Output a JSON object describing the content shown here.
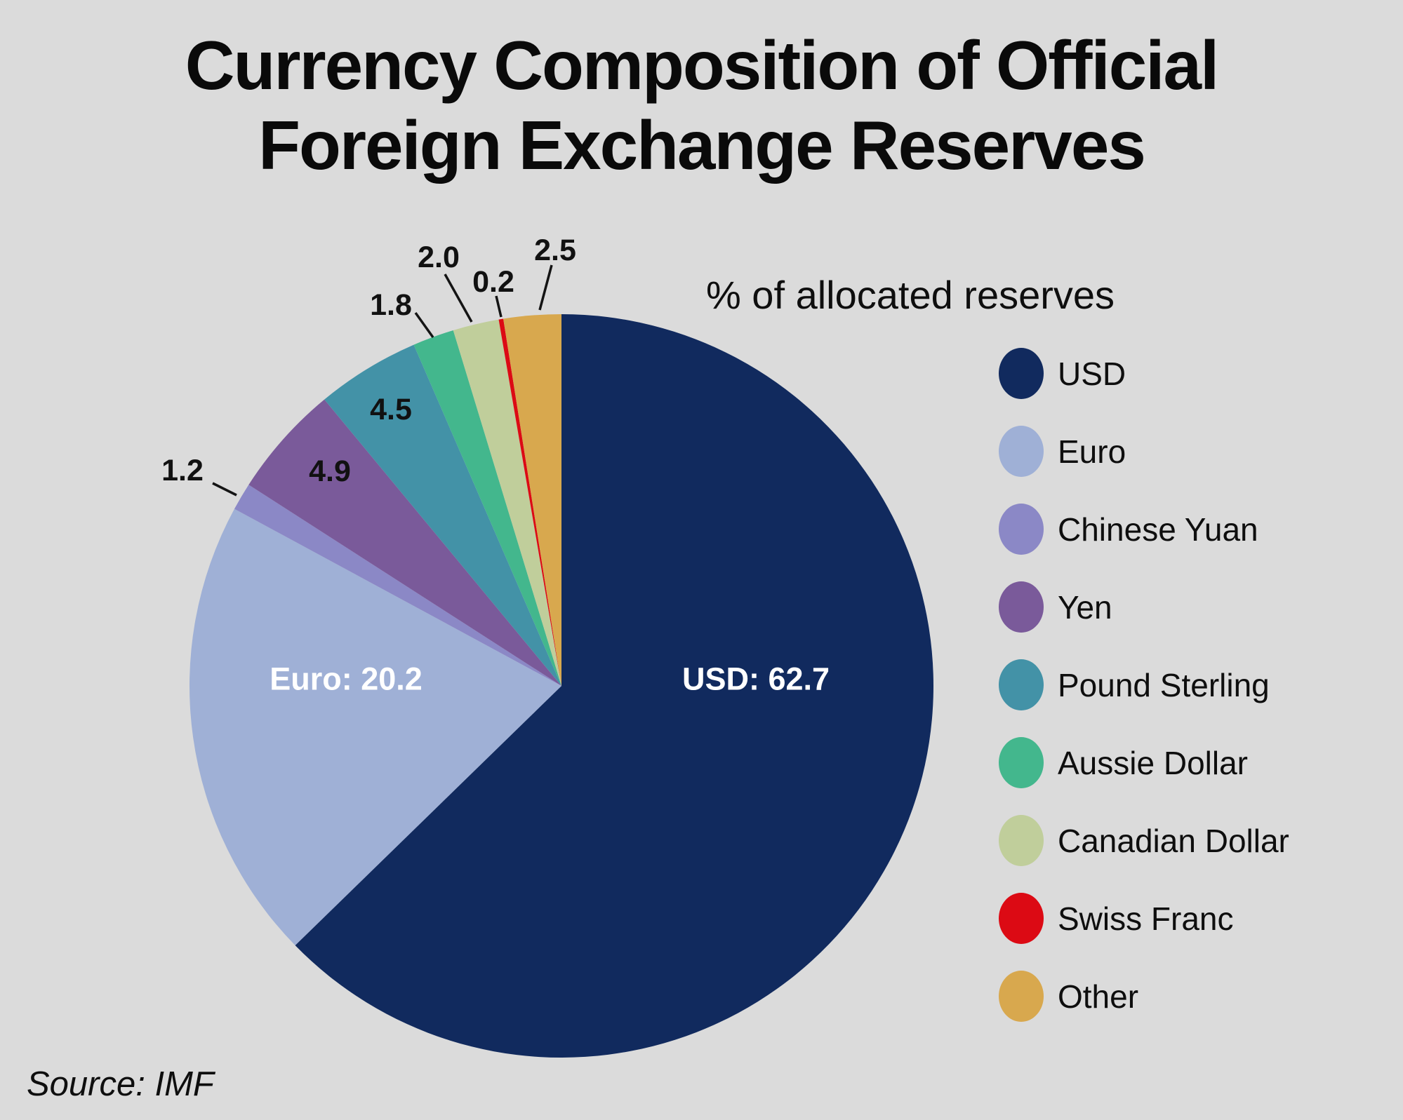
{
  "title": "Currency Composition of Official\nForeign Exchange Reserves",
  "subtitle": "% of allocated reserves",
  "source": "Source: IMF",
  "background_color": "#dbdbdb",
  "chart_data": {
    "type": "pie",
    "title": "Currency Composition of Official Foreign Exchange Reserves",
    "subtitle": "% of allocated reserves",
    "unit": "% of allocated reserves",
    "direction": "clockwise",
    "start_angle": "12-oclock",
    "legend_position": "right",
    "total": 100.0,
    "labels": [
      "USD",
      "Euro",
      "Chinese Yuan",
      "Yen",
      "Pound Sterling",
      "Aussie Dollar",
      "Canadian Dollar",
      "Swiss Franc",
      "Other"
    ],
    "values": [
      62.7,
      20.2,
      1.2,
      4.9,
      4.5,
      1.8,
      2.0,
      0.2,
      2.5
    ],
    "colors": [
      "#112a5e",
      "#9fb0d6",
      "#8b88c6",
      "#7a5a9a",
      "#4392a7",
      "#43b78d",
      "#c0ce9b",
      "#dc0a14",
      "#d8a84e"
    ],
    "slices": [
      {
        "label": "USD",
        "value": 62.7,
        "color": "#112a5e",
        "callout": "USD: 62.7",
        "callout_style": "inside"
      },
      {
        "label": "Euro",
        "value": 20.2,
        "color": "#9fb0d6",
        "callout": "Euro: 20.2",
        "callout_style": "inside"
      },
      {
        "label": "Chinese Yuan",
        "value": 1.2,
        "color": "#8b88c6",
        "callout": "1.2",
        "callout_style": "outside-leader"
      },
      {
        "label": "Yen",
        "value": 4.9,
        "color": "#7a5a9a",
        "callout": "4.9",
        "callout_style": "outside"
      },
      {
        "label": "Pound Sterling",
        "value": 4.5,
        "color": "#4392a7",
        "callout": "4.5",
        "callout_style": "outside"
      },
      {
        "label": "Aussie Dollar",
        "value": 1.8,
        "color": "#43b78d",
        "callout": "1.8",
        "callout_style": "outside-leader"
      },
      {
        "label": "Canadian Dollar",
        "value": 2.0,
        "color": "#c0ce9b",
        "callout": "2.0",
        "callout_style": "outside-leader"
      },
      {
        "label": "Swiss Franc",
        "value": 0.2,
        "color": "#dc0a14",
        "callout": "0.2",
        "callout_style": "outside-leader"
      },
      {
        "label": "Other",
        "value": 2.5,
        "color": "#d8a84e",
        "callout": "2.5",
        "callout_style": "outside-leader"
      }
    ],
    "source": "Source: IMF"
  },
  "legend": {
    "items": [
      {
        "label": "USD",
        "color": "#112a5e"
      },
      {
        "label": "Euro",
        "color": "#9fb0d6"
      },
      {
        "label": "Chinese Yuan",
        "color": "#8b88c6"
      },
      {
        "label": "Yen",
        "color": "#7a5a9a"
      },
      {
        "label": "Pound Sterling",
        "color": "#4392a7"
      },
      {
        "label": "Aussie Dollar",
        "color": "#43b78d"
      },
      {
        "label": "Canadian Dollar",
        "color": "#c0ce9b"
      },
      {
        "label": "Swiss Franc",
        "color": "#dc0a14"
      },
      {
        "label": "Other",
        "color": "#d8a84e"
      }
    ]
  }
}
